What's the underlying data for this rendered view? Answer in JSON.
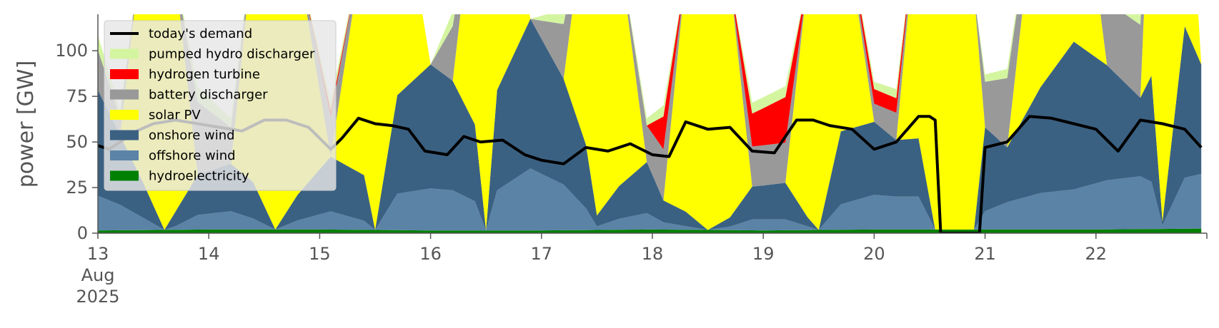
{
  "chart_data": {
    "type": "area",
    "ylabel": "power [GW]",
    "ylim": [
      0,
      120
    ],
    "yticks": [
      0,
      25,
      50,
      75,
      100
    ],
    "xlim": [
      13,
      23
    ],
    "xticks": [
      {
        "value": 13,
        "lines": [
          "13",
          "Aug",
          "2025"
        ]
      },
      {
        "value": 14,
        "lines": [
          "14"
        ]
      },
      {
        "value": 15,
        "lines": [
          "15"
        ]
      },
      {
        "value": 16,
        "lines": [
          "16"
        ]
      },
      {
        "value": 17,
        "lines": [
          "17"
        ]
      },
      {
        "value": 18,
        "lines": [
          "18"
        ]
      },
      {
        "value": 19,
        "lines": [
          "19"
        ]
      },
      {
        "value": 20,
        "lines": [
          "20"
        ]
      },
      {
        "value": 21,
        "lines": [
          "21"
        ]
      },
      {
        "value": 22,
        "lines": [
          "22"
        ]
      }
    ],
    "grid": false,
    "legend_position": "top-left",
    "stack_order": [
      "hydroelectricity",
      "offshore wind",
      "onshore wind",
      "solar PV",
      "battery discharger",
      "hydrogen turbine",
      "pumped hydro discharger"
    ],
    "legend_order": [
      "today's demand",
      "pumped hydro discharger",
      "hydrogen turbine",
      "battery discharger",
      "solar PV",
      "onshore wind",
      "offshore wind",
      "hydroelectricity"
    ],
    "colors": {
      "today's demand": "#000000",
      "pumped hydro discharger": "#d4f5a0",
      "hydrogen turbine": "#ff0000",
      "battery discharger": "#999999",
      "solar PV": "#ffff00",
      "onshore wind": "#3b6182",
      "offshore wind": "#5b83a6",
      "hydroelectricity": "#008000"
    },
    "series": [
      {
        "name": "hydroelectricity",
        "x": [
          13.0,
          14.0,
          15.0,
          16.0,
          17.0,
          18.0,
          19.0,
          20.0,
          21.0,
          22.0,
          22.95
        ],
        "values": [
          1.5,
          2,
          2,
          1.5,
          1.5,
          2,
          1.5,
          2,
          2,
          2,
          2.5
        ]
      },
      {
        "name": "offshore wind",
        "x": [
          13.0,
          13.2,
          13.4,
          13.6,
          13.7,
          13.9,
          14.2,
          14.4,
          14.6,
          14.8,
          15.1,
          15.4,
          15.5,
          15.7,
          16.0,
          16.2,
          16.4,
          16.5,
          16.6,
          16.9,
          17.2,
          17.4,
          17.5,
          17.7,
          17.95,
          18.1,
          18.3,
          18.5,
          18.7,
          18.9,
          19.2,
          19.4,
          19.5,
          19.7,
          20.0,
          20.2,
          20.4,
          20.55,
          20.6,
          20.75,
          20.9,
          21.0,
          21.2,
          21.5,
          21.8,
          22.1,
          22.4,
          22.5,
          22.6,
          22.8,
          22.95
        ],
        "values": [
          19,
          14,
          7,
          0,
          2,
          8,
          10,
          6,
          0,
          5,
          10,
          5,
          0,
          20,
          23,
          22,
          16,
          0,
          22,
          34,
          25,
          12,
          2,
          6,
          9,
          4,
          2,
          0,
          2,
          6,
          6,
          2,
          0,
          14,
          19,
          18,
          18,
          0,
          0,
          0,
          0,
          10,
          15,
          20,
          22,
          27,
          29,
          26,
          2,
          28,
          30
        ]
      },
      {
        "name": "onshore wind",
        "x": [
          13.0,
          13.2,
          13.4,
          13.6,
          13.7,
          13.9,
          14.2,
          14.4,
          14.6,
          14.8,
          15.1,
          15.4,
          15.5,
          15.7,
          16.0,
          16.2,
          16.4,
          16.5,
          16.6,
          16.9,
          17.2,
          17.4,
          17.5,
          17.7,
          17.95,
          18.1,
          18.3,
          18.5,
          18.7,
          18.9,
          19.2,
          19.4,
          19.5,
          19.7,
          20.0,
          20.2,
          20.4,
          20.55,
          20.6,
          20.75,
          20.9,
          21.0,
          21.2,
          21.5,
          21.8,
          22.1,
          22.4,
          22.5,
          22.6,
          22.8,
          22.95
        ],
        "values": [
          58,
          38,
          20,
          0,
          8,
          22,
          26,
          20,
          0,
          14,
          30,
          25,
          0,
          54,
          68,
          60,
          42,
          0,
          55,
          82,
          58,
          35,
          6,
          18,
          28,
          12,
          8,
          0,
          5,
          18,
          20,
          5,
          0,
          40,
          40,
          31,
          32,
          0,
          0,
          0,
          0,
          46,
          30,
          58,
          81,
          63,
          43,
          58,
          2,
          83,
          60
        ]
      },
      {
        "name": "solar PV",
        "x": [
          13.0,
          13.2,
          13.4,
          13.6,
          13.7,
          13.9,
          14.2,
          14.4,
          14.6,
          14.8,
          15.1,
          15.4,
          15.5,
          15.7,
          16.0,
          16.2,
          16.4,
          16.5,
          16.6,
          16.9,
          17.2,
          17.4,
          17.5,
          17.7,
          17.95,
          18.1,
          18.3,
          18.5,
          18.7,
          18.9,
          19.2,
          19.4,
          19.5,
          19.7,
          20.0,
          20.2,
          20.4,
          20.55,
          20.6,
          20.75,
          20.9,
          21.0,
          21.2,
          21.5,
          21.8,
          22.1,
          22.4,
          22.5,
          22.6,
          22.8,
          22.95
        ],
        "values": [
          0,
          0,
          130,
          130,
          130,
          0,
          0,
          130,
          130,
          130,
          0,
          130,
          130,
          130,
          0,
          0,
          130,
          130,
          130,
          0,
          0,
          130,
          130,
          130,
          0,
          0,
          130,
          130,
          130,
          0,
          0,
          130,
          130,
          130,
          0,
          0,
          130,
          130,
          130,
          130,
          130,
          0,
          0,
          130,
          130,
          0,
          0,
          130,
          130,
          130,
          0
        ]
      },
      {
        "name": "battery discharger",
        "x": [
          13.0,
          13.2,
          13.4,
          13.6,
          13.7,
          13.9,
          14.2,
          14.4,
          14.6,
          14.8,
          15.1,
          15.4,
          15.5,
          15.7,
          16.0,
          16.2,
          16.4,
          16.5,
          16.6,
          16.9,
          17.2,
          17.4,
          17.5,
          17.7,
          17.95,
          18.1,
          18.3,
          18.5,
          18.7,
          18.9,
          19.2,
          19.4,
          19.5,
          19.7,
          20.0,
          20.2,
          20.4,
          20.55,
          20.6,
          20.75,
          20.9,
          21.0,
          21.2,
          21.5,
          21.8,
          22.1,
          22.4,
          22.5,
          22.6,
          22.8,
          22.95
        ],
        "values": [
          22,
          10,
          0,
          0,
          0,
          40,
          20,
          0,
          0,
          0,
          22,
          0,
          0,
          0,
          0,
          30,
          0,
          0,
          0,
          0,
          30,
          0,
          0,
          0,
          20,
          28,
          0,
          0,
          0,
          22,
          22,
          0,
          0,
          0,
          10,
          15,
          0,
          0,
          0,
          0,
          0,
          25,
          38,
          0,
          0,
          35,
          40,
          0,
          0,
          0,
          0
        ]
      },
      {
        "name": "hydrogen turbine",
        "x": [
          13.0,
          13.2,
          13.4,
          13.6,
          13.7,
          13.9,
          14.2,
          14.4,
          14.6,
          14.8,
          15.1,
          15.4,
          15.5,
          15.7,
          16.0,
          16.2,
          16.4,
          16.5,
          16.6,
          16.9,
          17.2,
          17.4,
          17.5,
          17.7,
          17.95,
          18.1,
          18.3,
          18.5,
          18.7,
          18.9,
          19.2,
          19.4,
          19.5,
          19.7,
          20.0,
          20.2,
          20.4,
          20.55,
          20.6,
          20.75,
          20.9,
          21.0,
          21.2,
          21.5,
          21.8,
          22.1,
          22.4,
          22.5,
          22.6,
          22.8,
          22.95
        ],
        "values": [
          0,
          0,
          0,
          0,
          0,
          0,
          0,
          0,
          0,
          0,
          3,
          0,
          0,
          0,
          0,
          0,
          0,
          0,
          0,
          0,
          0,
          0,
          0,
          0,
          0,
          18,
          0,
          0,
          0,
          18,
          25,
          0,
          0,
          0,
          8,
          8,
          0,
          0,
          0,
          0,
          0,
          0,
          0,
          0,
          0,
          0,
          0,
          0,
          0,
          0,
          0
        ]
      },
      {
        "name": "pumped hydro discharger",
        "x": [
          13.0,
          13.2,
          13.4,
          13.6,
          13.7,
          13.9,
          14.2,
          14.4,
          14.6,
          14.8,
          15.1,
          15.4,
          15.5,
          15.7,
          16.0,
          16.2,
          16.4,
          16.5,
          16.6,
          16.9,
          17.2,
          17.4,
          17.5,
          17.7,
          17.95,
          18.1,
          18.3,
          18.5,
          18.7,
          18.9,
          19.2,
          19.4,
          19.5,
          19.7,
          20.0,
          20.2,
          20.4,
          20.55,
          20.6,
          20.75,
          20.9,
          21.0,
          21.2,
          21.5,
          21.8,
          22.1,
          22.4,
          22.5,
          22.6,
          22.8,
          22.95
        ],
        "values": [
          8,
          4,
          0,
          0,
          0,
          8,
          5,
          0,
          0,
          0,
          5,
          0,
          0,
          0,
          0,
          8,
          0,
          0,
          0,
          0,
          8,
          0,
          0,
          0,
          4,
          6,
          0,
          0,
          0,
          6,
          6,
          0,
          0,
          0,
          4,
          5,
          0,
          0,
          0,
          0,
          0,
          4,
          5,
          0,
          0,
          8,
          8,
          0,
          0,
          0,
          0
        ]
      },
      {
        "name": "today's demand",
        "kind": "line",
        "x": [
          13.0,
          13.1,
          13.2,
          13.35,
          13.5,
          13.7,
          13.9,
          14.1,
          14.3,
          14.5,
          14.7,
          14.9,
          15.1,
          15.2,
          15.35,
          15.5,
          15.65,
          15.8,
          15.95,
          16.15,
          16.3,
          16.45,
          16.65,
          16.85,
          17.0,
          17.2,
          17.4,
          17.6,
          17.8,
          18.0,
          18.15,
          18.3,
          18.5,
          18.7,
          18.9,
          19.1,
          19.3,
          19.45,
          19.6,
          19.8,
          20.0,
          20.2,
          20.4,
          20.5,
          20.55,
          20.6
        ],
        "values": [
          48,
          46,
          50,
          56,
          60,
          62,
          60,
          58,
          56,
          62,
          62,
          58,
          46,
          52,
          63,
          60,
          59,
          57,
          45,
          43,
          53,
          50,
          51,
          43,
          40,
          38,
          47,
          45,
          49,
          43,
          42,
          61,
          57,
          58,
          45,
          44,
          62,
          62,
          59,
          57,
          46,
          50,
          64,
          64,
          62,
          0
        ]
      },
      {
        "name": "today's demand",
        "kind": "line",
        "x": [
          20.6,
          20.95
        ],
        "values": [
          0,
          0
        ]
      },
      {
        "name": "today's demand",
        "kind": "line",
        "x": [
          20.95,
          21.0,
          21.2,
          21.4,
          21.6,
          21.8,
          22.0,
          22.2,
          22.4,
          22.6,
          22.8,
          22.95
        ],
        "values": [
          0,
          47,
          50,
          64,
          63,
          60,
          57,
          45,
          62,
          60,
          57,
          47
        ]
      }
    ]
  }
}
